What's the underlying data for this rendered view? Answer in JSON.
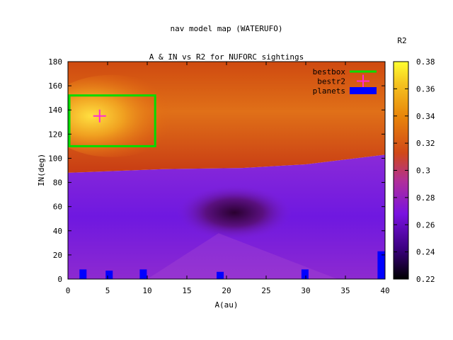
{
  "chart_data": {
    "type": "heatmap",
    "title": "nav model map (WATERUFO)",
    "subtitle": "A & IN vs R2 for NUFORC sightings",
    "xlabel": "A(au)",
    "ylabel": "IN(deg)",
    "xlim": [
      0,
      40
    ],
    "ylim": [
      0,
      180
    ],
    "x_ticks": [
      "0",
      "5",
      "10",
      "15",
      "20",
      "25",
      "30",
      "35",
      "40"
    ],
    "y_ticks": [
      "0",
      "20",
      "40",
      "60",
      "80",
      "100",
      "120",
      "140",
      "160",
      "180"
    ],
    "colorbar": {
      "label": "R2",
      "range": [
        0.22,
        0.38
      ],
      "ticks": [
        "0.22",
        "0.24",
        "0.26",
        "0.28",
        "0.3",
        "0.32",
        "0.34",
        "0.36",
        "0.38"
      ]
    },
    "legend": {
      "placement": "top-right",
      "entries": [
        {
          "name": "bestbox",
          "color": "#00dd00"
        },
        {
          "name": "bestr2",
          "color": "#ff2ad4"
        },
        {
          "name": "planets",
          "color": "#0000ff"
        }
      ]
    },
    "bestbox": {
      "x": [
        0,
        11
      ],
      "y": [
        110,
        152
      ]
    },
    "bestr2": {
      "x": 4,
      "y": 135
    },
    "planets": [
      {
        "x": 1.9,
        "y_top": 8
      },
      {
        "x": 5.2,
        "y_top": 7
      },
      {
        "x": 9.5,
        "y_top": 8
      },
      {
        "x": 19.2,
        "y_top": 6
      },
      {
        "x": 29.9,
        "y_top": 8
      },
      {
        "x": 39.5,
        "y_top": 23
      }
    ],
    "regions": [
      {
        "name": "upper",
        "value": 0.315
      },
      {
        "name": "hotspot",
        "value": 0.37,
        "x": [
          1,
          10
        ],
        "y": [
          115,
          155
        ]
      },
      {
        "name": "lower",
        "value": 0.265
      },
      {
        "name": "dark-pocket",
        "value": 0.235,
        "x": [
          15,
          27
        ],
        "y": [
          40,
          70
        ]
      }
    ]
  }
}
